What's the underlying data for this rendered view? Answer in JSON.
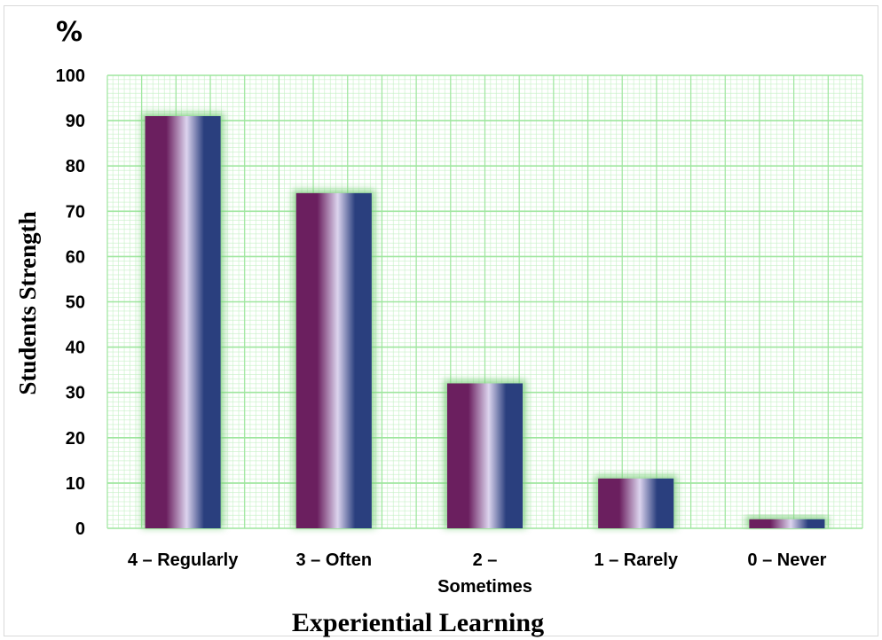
{
  "chart_data": {
    "type": "bar",
    "categories": [
      "4 – Regularly",
      "3 – Often",
      "2 – Sometimes",
      "1 – Rarely",
      "0 – Never"
    ],
    "category_lines": [
      [
        "4 – Regularly"
      ],
      [
        "3 – Often"
      ],
      [
        "2 –",
        "Sometimes"
      ],
      [
        "1 – Rarely"
      ],
      [
        "0 – Never"
      ]
    ],
    "values": [
      91,
      74,
      32,
      11,
      2
    ],
    "xlabel": "Experiential Learning",
    "ylabel": "Students Strength",
    "unit_label": "%",
    "ylim": [
      0,
      100
    ],
    "yticks": [
      0,
      10,
      20,
      30,
      40,
      50,
      60,
      70,
      80,
      90,
      100
    ],
    "grid": true,
    "colors": {
      "plot_background": "#ffffff",
      "grid_major": "#9ee69e",
      "grid_minor": "#c4f0c4",
      "bar_dark": "#6b1f5f",
      "bar_light": "#dcd4ee",
      "bar_blue": "#2a3f7e",
      "bar_glow": "#7fd07f"
    }
  }
}
